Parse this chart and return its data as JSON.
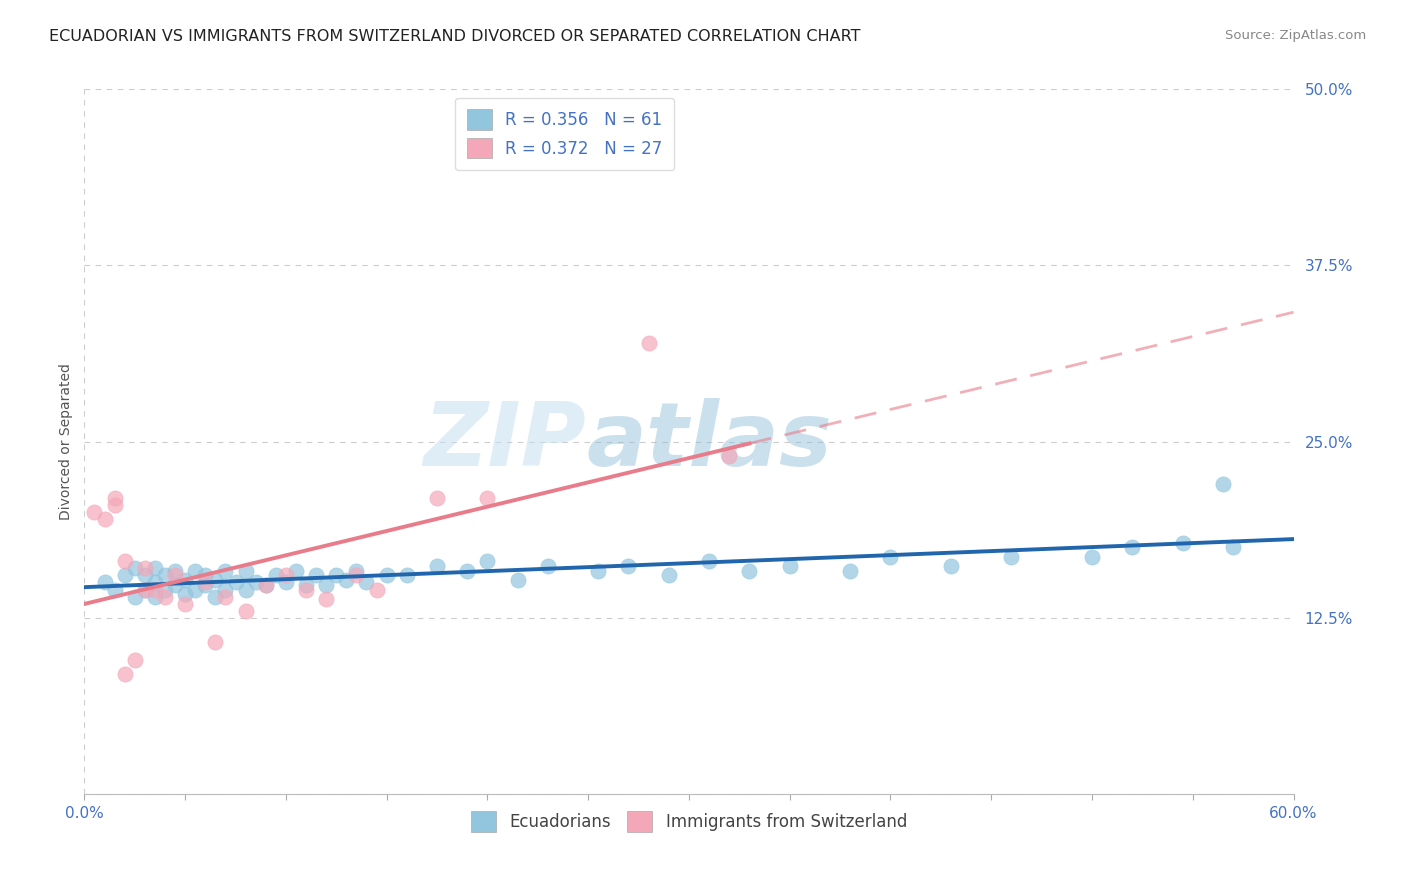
{
  "title": "ECUADORIAN VS IMMIGRANTS FROM SWITZERLAND DIVORCED OR SEPARATED CORRELATION CHART",
  "source": "Source: ZipAtlas.com",
  "ylabel": "Divorced or Separated",
  "legend_label_1": "Ecuadorians",
  "legend_label_2": "Immigrants from Switzerland",
  "R1": 0.356,
  "N1": 61,
  "R2": 0.372,
  "N2": 27,
  "color1": "#92c5de",
  "color2": "#f4a7b9",
  "color_trend1": "#2166ac",
  "color_trend2": "#e87c8a",
  "color_text_blue": "#4472c4",
  "color_tick_label": "#4472c4",
  "xlim": [
    0.0,
    0.6
  ],
  "ylim": [
    0.0,
    0.5
  ],
  "yticks": [
    0.0,
    0.125,
    0.25,
    0.375,
    0.5
  ],
  "ytick_labels": [
    "",
    "12.5%",
    "25.0%",
    "37.5%",
    "50.0%"
  ],
  "background_color": "#ffffff",
  "grid_color": "#cccccc",
  "title_fontsize": 11.5,
  "axis_label_fontsize": 10,
  "tick_fontsize": 11,
  "legend_fontsize": 12,
  "watermark_zip_color": "#c8e4f0",
  "watermark_atlas_color": "#a0c8e0"
}
